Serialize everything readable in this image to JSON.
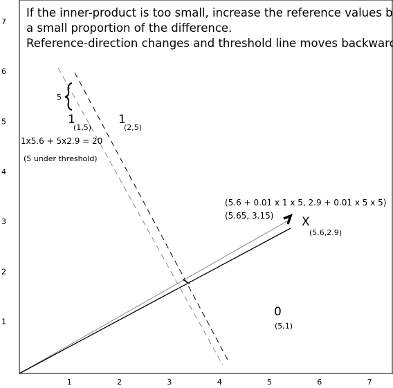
{
  "header": {
    "lines": [
      "If the inner-product is too small,  increase the reference values  by",
      "a small proportion of the difference.",
      "Reference-direction changes and threshold line moves backwards."
    ]
  },
  "x_axis": {
    "labels": [
      "1",
      "2",
      "3",
      "4",
      "5",
      "6",
      "7"
    ]
  },
  "y_axis": {
    "labels": [
      "1",
      "2",
      "3",
      "4",
      "5",
      "6",
      "7"
    ]
  },
  "annotations": {
    "brace_count": "5",
    "point_a": {
      "label": "1",
      "coords": "(1,5)"
    },
    "point_b": {
      "label": "1",
      "coords": "(2,5)"
    },
    "inner_product": "1x5.6 + 5x2.9 = 20",
    "under_threshold": "(5 under threshold)",
    "update_formula": "(5.6 + 0.01 x 1 x 5, 2.9 + 0.01 x 5 x 5)",
    "update_result": "(5.65, 3.15)",
    "vector": {
      "label": "X",
      "coords": "(5.6,2.9)"
    },
    "point_c": {
      "label": "0",
      "coords": "(5,1)"
    }
  }
}
